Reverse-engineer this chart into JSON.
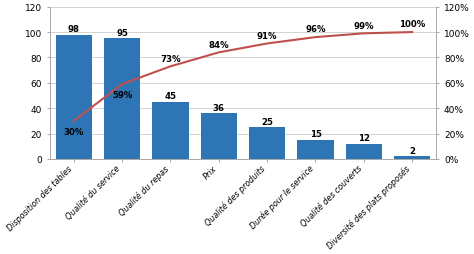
{
  "categories": [
    "Disposition des tables",
    "Qualité du service",
    "Qualité du repas",
    "Prix",
    "Qualité des produits",
    "Durée pour le service",
    "Qualité des couverts",
    "Diversité des plats proposés"
  ],
  "values": [
    98,
    95,
    45,
    36,
    25,
    15,
    12,
    2
  ],
  "cumulative_pct": [
    30,
    59,
    73,
    84,
    91,
    96,
    99,
    100
  ],
  "bar_color": "#2E75B6",
  "line_color": "#C0504D",
  "bar_labels": [
    "98",
    "95",
    "45",
    "36",
    "25",
    "15",
    "12",
    "2"
  ],
  "pct_labels": [
    "30%",
    "59%",
    "73%",
    "84%",
    "91%",
    "96%",
    "99%",
    "100%"
  ],
  "ylim_left": [
    0,
    120
  ],
  "ylim_right": [
    0,
    120
  ],
  "yticks_left": [
    0,
    20,
    40,
    60,
    80,
    100,
    120
  ],
  "yticks_right": [
    0,
    20,
    40,
    60,
    80,
    100,
    120
  ],
  "yticklabels_right": [
    "0%",
    "20%",
    "40%",
    "60%",
    "80%",
    "100%",
    "120%"
  ],
  "grid_color": "#CCCCCC",
  "background_color": "#FFFFFF",
  "pct_label_inside": [
    true,
    true,
    false,
    false,
    false,
    false,
    false,
    false
  ]
}
